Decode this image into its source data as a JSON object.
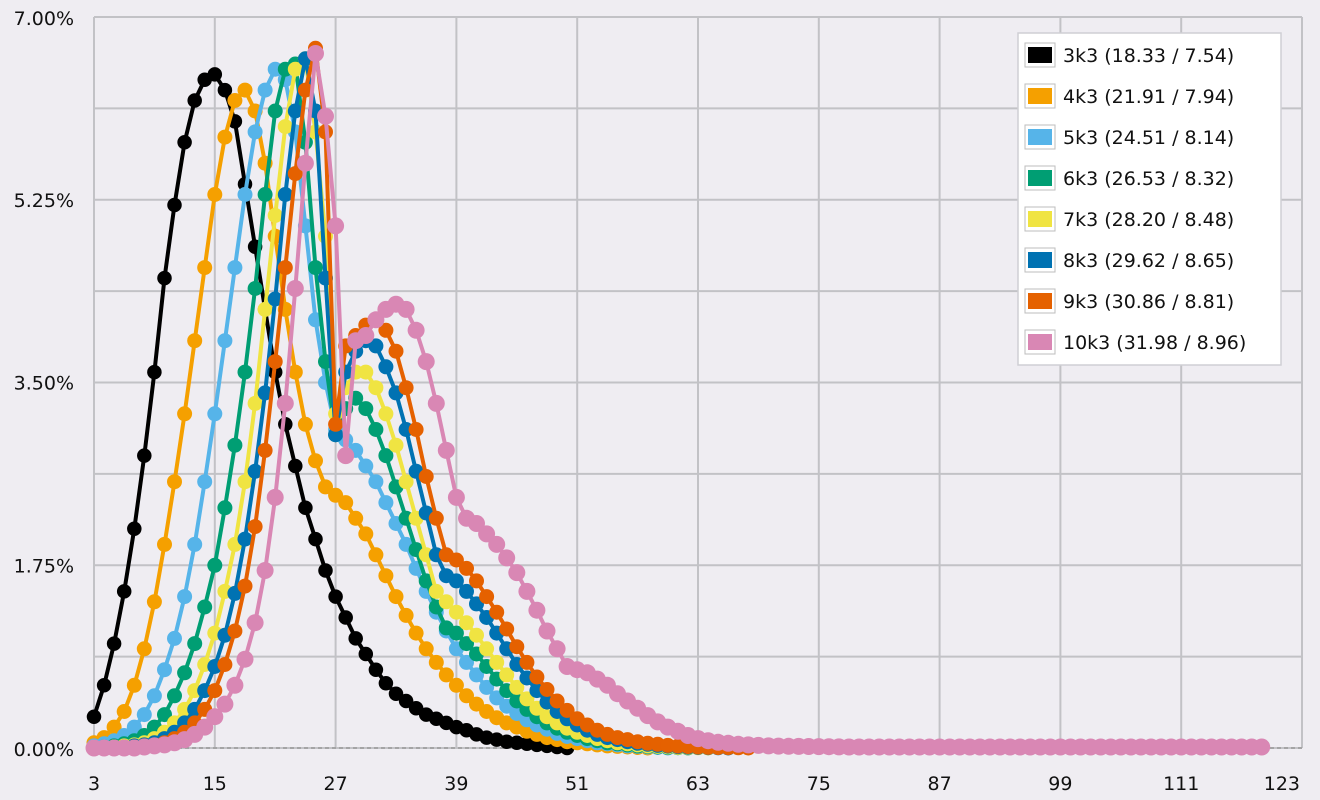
{
  "chart_data": {
    "type": "line",
    "title": "",
    "xlabel": "",
    "ylabel": "",
    "xlim": [
      3,
      123
    ],
    "ylim": [
      0,
      7
    ],
    "x_ticks": [
      "3",
      "15",
      "27",
      "39",
      "51",
      "63",
      "75",
      "87",
      "99",
      "111",
      "123"
    ],
    "y_ticks": [
      "0.00%",
      "1.75%",
      "3.50%",
      "5.25%",
      "7.00%"
    ],
    "grid": true,
    "legend_position": "top-right",
    "series": [
      {
        "name": "3k3 (18.33 / 7.54)",
        "color": "#000000",
        "marker": 8.5,
        "x": [
          3,
          4,
          5,
          6,
          7,
          8,
          9,
          10,
          11,
          12,
          13,
          14,
          15,
          16,
          17,
          18,
          19,
          20,
          21,
          22,
          23,
          24,
          25,
          26,
          27,
          28,
          29,
          30,
          31,
          32,
          33,
          34,
          35,
          36,
          37,
          38,
          39,
          40,
          41,
          42,
          43,
          44,
          45,
          46,
          47,
          48,
          49,
          50
        ],
        "y": [
          0.3,
          0.6,
          1.0,
          1.5,
          2.1,
          2.8,
          3.6,
          4.5,
          5.2,
          5.8,
          6.2,
          6.4,
          6.45,
          6.3,
          6.0,
          5.4,
          4.8,
          4.2,
          3.6,
          3.1,
          2.7,
          2.3,
          2.0,
          1.7,
          1.45,
          1.25,
          1.05,
          0.9,
          0.75,
          0.62,
          0.52,
          0.45,
          0.38,
          0.32,
          0.28,
          0.24,
          0.2,
          0.17,
          0.13,
          0.1,
          0.08,
          0.06,
          0.05,
          0.04,
          0.03,
          0.02,
          0.01,
          0.0
        ]
      },
      {
        "name": "4k3 (21.91 / 7.94)",
        "color": "#f5a000",
        "marker": 9,
        "x": [
          3,
          4,
          5,
          6,
          7,
          8,
          9,
          10,
          11,
          12,
          13,
          14,
          15,
          16,
          17,
          18,
          19,
          20,
          21,
          22,
          23,
          24,
          25,
          26,
          27,
          28,
          29,
          30,
          31,
          32,
          33,
          34,
          35,
          36,
          37,
          38,
          39,
          40,
          41,
          42,
          43,
          44,
          45,
          46,
          47,
          48,
          49,
          50,
          51,
          52,
          53,
          54,
          55,
          56,
          57,
          58
        ],
        "y": [
          0.05,
          0.1,
          0.2,
          0.35,
          0.6,
          0.95,
          1.4,
          1.95,
          2.55,
          3.2,
          3.9,
          4.6,
          5.3,
          5.85,
          6.2,
          6.3,
          6.1,
          5.6,
          4.9,
          4.2,
          3.6,
          3.1,
          2.75,
          2.5,
          2.42,
          2.35,
          2.2,
          2.05,
          1.85,
          1.65,
          1.45,
          1.27,
          1.1,
          0.95,
          0.82,
          0.7,
          0.6,
          0.5,
          0.42,
          0.35,
          0.29,
          0.24,
          0.2,
          0.16,
          0.13,
          0.1,
          0.08,
          0.06,
          0.05,
          0.04,
          0.03,
          0.02,
          0.015,
          0.01,
          0.005,
          0.0
        ]
      },
      {
        "name": "5k3 (24.51 / 8.14)",
        "color": "#56b4e9",
        "marker": 9,
        "x": [
          3,
          4,
          5,
          6,
          7,
          8,
          9,
          10,
          11,
          12,
          13,
          14,
          15,
          16,
          17,
          18,
          19,
          20,
          21,
          22,
          23,
          24,
          25,
          26,
          27,
          28,
          29,
          30,
          31,
          32,
          33,
          34,
          35,
          36,
          37,
          38,
          39,
          40,
          41,
          42,
          43,
          44,
          45,
          46,
          47,
          48,
          49,
          50,
          51,
          52,
          53,
          54,
          55,
          56,
          57,
          58,
          59,
          60
        ],
        "y": [
          0.02,
          0.04,
          0.07,
          0.12,
          0.2,
          0.32,
          0.5,
          0.75,
          1.05,
          1.45,
          1.95,
          2.55,
          3.2,
          3.9,
          4.6,
          5.3,
          5.9,
          6.3,
          6.5,
          6.4,
          5.9,
          5.0,
          4.1,
          3.5,
          3.05,
          2.95,
          2.85,
          2.7,
          2.55,
          2.35,
          2.15,
          1.95,
          1.72,
          1.5,
          1.3,
          1.12,
          0.95,
          0.82,
          0.7,
          0.58,
          0.48,
          0.4,
          0.33,
          0.27,
          0.22,
          0.18,
          0.14,
          0.11,
          0.09,
          0.07,
          0.05,
          0.04,
          0.03,
          0.02,
          0.015,
          0.01,
          0.005,
          0.0
        ]
      },
      {
        "name": "6k3 (26.53 / 8.32)",
        "color": "#009e73",
        "marker": 9,
        "x": [
          3,
          4,
          5,
          6,
          7,
          8,
          9,
          10,
          11,
          12,
          13,
          14,
          15,
          16,
          17,
          18,
          19,
          20,
          21,
          22,
          23,
          24,
          25,
          26,
          27,
          28,
          29,
          30,
          31,
          32,
          33,
          34,
          35,
          36,
          37,
          38,
          39,
          40,
          41,
          42,
          43,
          44,
          45,
          46,
          47,
          48,
          49,
          50,
          51,
          52,
          53,
          54,
          55,
          56,
          57,
          58,
          59,
          60,
          61,
          62
        ],
        "y": [
          0.0,
          0.01,
          0.02,
          0.04,
          0.07,
          0.12,
          0.2,
          0.32,
          0.5,
          0.72,
          1.0,
          1.35,
          1.75,
          2.3,
          2.9,
          3.6,
          4.4,
          5.3,
          6.1,
          6.5,
          6.55,
          5.8,
          4.6,
          3.7,
          3.0,
          3.25,
          3.35,
          3.25,
          3.05,
          2.8,
          2.5,
          2.2,
          1.9,
          1.6,
          1.35,
          1.15,
          1.1,
          1.0,
          0.9,
          0.78,
          0.66,
          0.55,
          0.45,
          0.37,
          0.3,
          0.24,
          0.19,
          0.15,
          0.12,
          0.09,
          0.07,
          0.05,
          0.04,
          0.03,
          0.02,
          0.015,
          0.01,
          0.005,
          0.003,
          0.0
        ]
      },
      {
        "name": "7k3 (28.20 / 8.48)",
        "color": "#f0e442",
        "marker": 9,
        "x": [
          3,
          4,
          5,
          6,
          7,
          8,
          9,
          10,
          11,
          12,
          13,
          14,
          15,
          16,
          17,
          18,
          19,
          20,
          21,
          22,
          23,
          24,
          25,
          26,
          27,
          28,
          29,
          30,
          31,
          32,
          33,
          34,
          35,
          36,
          37,
          38,
          39,
          40,
          41,
          42,
          43,
          44,
          45,
          46,
          47,
          48,
          49,
          50,
          51,
          52,
          53,
          54,
          55,
          56,
          57,
          58,
          59,
          60,
          61,
          62,
          63,
          64
        ],
        "y": [
          0.0,
          0.0,
          0.01,
          0.02,
          0.03,
          0.05,
          0.09,
          0.15,
          0.24,
          0.37,
          0.55,
          0.8,
          1.1,
          1.5,
          1.95,
          2.55,
          3.3,
          4.2,
          5.1,
          5.95,
          6.5,
          6.6,
          5.9,
          4.9,
          3.2,
          3.45,
          3.6,
          3.6,
          3.45,
          3.2,
          2.9,
          2.55,
          2.2,
          1.85,
          1.5,
          1.4,
          1.3,
          1.2,
          1.08,
          0.95,
          0.82,
          0.7,
          0.58,
          0.47,
          0.38,
          0.3,
          0.24,
          0.19,
          0.15,
          0.12,
          0.09,
          0.07,
          0.05,
          0.04,
          0.03,
          0.02,
          0.015,
          0.01,
          0.005,
          0.003,
          0.002,
          0.0
        ]
      },
      {
        "name": "8k3 (29.62 / 8.65)",
        "color": "#0072b2",
        "marker": 9,
        "x": [
          3,
          4,
          5,
          6,
          7,
          8,
          9,
          10,
          11,
          12,
          13,
          14,
          15,
          16,
          17,
          18,
          19,
          20,
          21,
          22,
          23,
          24,
          25,
          26,
          27,
          28,
          29,
          30,
          31,
          32,
          33,
          34,
          35,
          36,
          37,
          38,
          39,
          40,
          41,
          42,
          43,
          44,
          45,
          46,
          47,
          48,
          49,
          50,
          51,
          52,
          53,
          54,
          55,
          56,
          57,
          58,
          59,
          60,
          61,
          62,
          63,
          64,
          65,
          66
        ],
        "y": [
          0.0,
          0.0,
          0.0,
          0.01,
          0.02,
          0.03,
          0.05,
          0.09,
          0.15,
          0.24,
          0.37,
          0.55,
          0.78,
          1.08,
          1.48,
          2.0,
          2.65,
          3.4,
          4.3,
          5.3,
          6.1,
          6.6,
          6.1,
          4.5,
          3.0,
          3.6,
          3.8,
          3.9,
          3.85,
          3.65,
          3.4,
          3.05,
          2.65,
          2.25,
          1.85,
          1.65,
          1.6,
          1.5,
          1.38,
          1.25,
          1.1,
          0.95,
          0.8,
          0.67,
          0.55,
          0.44,
          0.35,
          0.28,
          0.22,
          0.17,
          0.13,
          0.1,
          0.08,
          0.06,
          0.045,
          0.035,
          0.025,
          0.018,
          0.012,
          0.008,
          0.005,
          0.003,
          0.002,
          0.0
        ]
      },
      {
        "name": "9k3 (30.86 / 8.81)",
        "color": "#e56100",
        "marker": 9,
        "x": [
          3,
          4,
          5,
          6,
          7,
          8,
          9,
          10,
          11,
          12,
          13,
          14,
          15,
          16,
          17,
          18,
          19,
          20,
          21,
          22,
          23,
          24,
          25,
          26,
          27,
          28,
          29,
          30,
          31,
          32,
          33,
          34,
          35,
          36,
          37,
          38,
          39,
          40,
          41,
          42,
          43,
          44,
          45,
          46,
          47,
          48,
          49,
          50,
          51,
          52,
          53,
          54,
          55,
          56,
          57,
          58,
          59,
          60,
          61,
          62,
          63,
          64,
          65,
          66,
          67,
          68
        ],
        "y": [
          0.0,
          0.0,
          0.0,
          0.0,
          0.01,
          0.02,
          0.03,
          0.05,
          0.09,
          0.15,
          0.24,
          0.37,
          0.55,
          0.8,
          1.12,
          1.55,
          2.12,
          2.85,
          3.7,
          4.6,
          5.5,
          6.3,
          6.7,
          5.9,
          3.1,
          3.85,
          3.95,
          4.05,
          4.1,
          4.0,
          3.8,
          3.45,
          3.05,
          2.6,
          2.2,
          1.85,
          1.8,
          1.72,
          1.6,
          1.45,
          1.3,
          1.14,
          0.97,
          0.82,
          0.68,
          0.56,
          0.45,
          0.36,
          0.28,
          0.22,
          0.17,
          0.13,
          0.1,
          0.08,
          0.06,
          0.045,
          0.035,
          0.025,
          0.018,
          0.013,
          0.009,
          0.006,
          0.004,
          0.003,
          0.002,
          0.0
        ]
      },
      {
        "name": "10k3 (31.98 / 8.96)",
        "color": "#d987b4",
        "marker": 11,
        "x": [
          3,
          4,
          5,
          6,
          7,
          8,
          9,
          10,
          11,
          12,
          13,
          14,
          15,
          16,
          17,
          18,
          19,
          20,
          21,
          22,
          23,
          24,
          25,
          26,
          27,
          28,
          29,
          30,
          31,
          32,
          33,
          34,
          35,
          36,
          37,
          38,
          39,
          40,
          41,
          42,
          43,
          44,
          45,
          46,
          47,
          48,
          49,
          50,
          51,
          52,
          53,
          54,
          55,
          56,
          57,
          58,
          59,
          60,
          61,
          62,
          63,
          64,
          65,
          66,
          67,
          68,
          69,
          70,
          71,
          72,
          73,
          74,
          75,
          76,
          77,
          78,
          79,
          80,
          81,
          82,
          83,
          84,
          85,
          86,
          87,
          88,
          89,
          90,
          91,
          92,
          93,
          94,
          95,
          96,
          97,
          98,
          99,
          100,
          101,
          102,
          103,
          104,
          105,
          106,
          107,
          108,
          109,
          110,
          111,
          112,
          113,
          114,
          115,
          116,
          117,
          118,
          119
        ],
        "y": [
          0.0,
          0.0,
          0.0,
          0.0,
          0.0,
          0.01,
          0.02,
          0.03,
          0.05,
          0.08,
          0.13,
          0.2,
          0.3,
          0.42,
          0.6,
          0.85,
          1.2,
          1.7,
          2.4,
          3.3,
          4.4,
          5.6,
          6.65,
          6.05,
          5.0,
          2.8,
          3.9,
          3.95,
          4.1,
          4.2,
          4.25,
          4.2,
          4.0,
          3.7,
          3.3,
          2.85,
          2.4,
          2.2,
          2.15,
          2.05,
          1.95,
          1.82,
          1.68,
          1.5,
          1.32,
          1.12,
          0.95,
          0.78,
          0.75,
          0.72,
          0.66,
          0.6,
          0.52,
          0.45,
          0.38,
          0.31,
          0.25,
          0.2,
          0.16,
          0.12,
          0.09,
          0.07,
          0.055,
          0.045,
          0.035,
          0.03,
          0.025,
          0.02,
          0.018,
          0.016,
          0.015,
          0.014,
          0.013,
          0.012,
          0.011,
          0.01,
          0.01,
          0.01,
          0.01,
          0.01,
          0.01,
          0.01,
          0.01,
          0.01,
          0.01,
          0.01,
          0.01,
          0.01,
          0.01,
          0.01,
          0.01,
          0.01,
          0.01,
          0.01,
          0.01,
          0.01,
          0.01,
          0.01,
          0.01,
          0.01,
          0.01,
          0.01,
          0.01,
          0.01,
          0.01,
          0.01,
          0.01,
          0.01,
          0.01,
          0.01,
          0.01,
          0.01,
          0.01,
          0.01,
          0.01,
          0.01,
          0.01
        ]
      }
    ]
  }
}
